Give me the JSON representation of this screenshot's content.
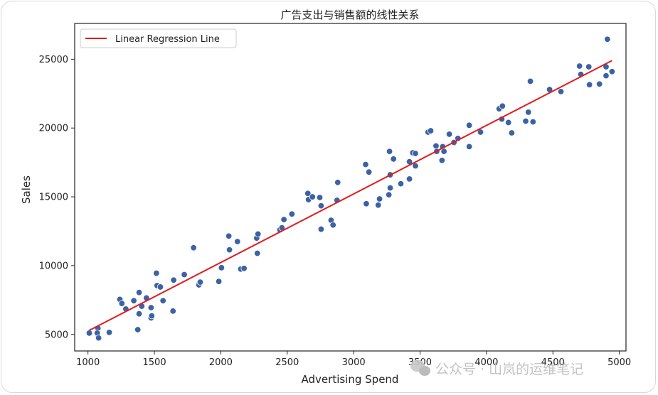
{
  "chart_data": {
    "type": "scatter",
    "title": "广告支出与销售额的线性关系",
    "xlabel": "Advertising Spend",
    "ylabel": "Sales",
    "xlim": [
      900,
      5050
    ],
    "ylim": [
      3800,
      27600
    ],
    "xticks": [
      1000,
      1500,
      2000,
      2500,
      3000,
      3500,
      4000,
      4500,
      5000
    ],
    "yticks": [
      5000,
      10000,
      15000,
      20000,
      25000
    ],
    "grid": false,
    "legend_position": "top-left",
    "colors": {
      "points": "#3b62a4",
      "line": "#e41a1c"
    },
    "series": [
      {
        "type": "scatter",
        "points": [
          [
            1010,
            5100
          ],
          [
            1075,
            5450
          ],
          [
            1070,
            5100
          ],
          [
            1080,
            4750
          ],
          [
            1160,
            5150
          ],
          [
            1240,
            7550
          ],
          [
            1255,
            7250
          ],
          [
            1285,
            6850
          ],
          [
            1345,
            7450
          ],
          [
            1375,
            5350
          ],
          [
            1385,
            8050
          ],
          [
            1385,
            6500
          ],
          [
            1405,
            7050
          ],
          [
            1440,
            7650
          ],
          [
            1475,
            6200
          ],
          [
            1475,
            6950
          ],
          [
            1480,
            6350
          ],
          [
            1515,
            9450
          ],
          [
            1520,
            8550
          ],
          [
            1545,
            8450
          ],
          [
            1565,
            7450
          ],
          [
            1640,
            6700
          ],
          [
            1645,
            8950
          ],
          [
            1725,
            9350
          ],
          [
            1795,
            11300
          ],
          [
            1835,
            8600
          ],
          [
            1845,
            8800
          ],
          [
            1985,
            8850
          ],
          [
            2005,
            9850
          ],
          [
            2060,
            12150
          ],
          [
            2065,
            11150
          ],
          [
            2125,
            11750
          ],
          [
            2150,
            9750
          ],
          [
            2175,
            9800
          ],
          [
            2270,
            12000
          ],
          [
            2280,
            12300
          ],
          [
            2275,
            10900
          ],
          [
            2445,
            12600
          ],
          [
            2460,
            12750
          ],
          [
            2475,
            13350
          ],
          [
            2535,
            13750
          ],
          [
            2655,
            15250
          ],
          [
            2660,
            14800
          ],
          [
            2690,
            15000
          ],
          [
            2745,
            14950
          ],
          [
            2755,
            14350
          ],
          [
            2755,
            12650
          ],
          [
            2830,
            13300
          ],
          [
            2845,
            12950
          ],
          [
            2875,
            14750
          ],
          [
            2880,
            16050
          ],
          [
            3090,
            17350
          ],
          [
            3095,
            14500
          ],
          [
            3115,
            16800
          ],
          [
            3185,
            14400
          ],
          [
            3195,
            14850
          ],
          [
            3265,
            15150
          ],
          [
            3270,
            18300
          ],
          [
            3275,
            16600
          ],
          [
            3275,
            15650
          ],
          [
            3300,
            17750
          ],
          [
            3355,
            15950
          ],
          [
            3420,
            16300
          ],
          [
            3420,
            17550
          ],
          [
            3445,
            18200
          ],
          [
            3465,
            18150
          ],
          [
            3465,
            17250
          ],
          [
            3560,
            19700
          ],
          [
            3580,
            19800
          ],
          [
            3620,
            18700
          ],
          [
            3625,
            18300
          ],
          [
            3670,
            18650
          ],
          [
            3680,
            18300
          ],
          [
            3665,
            17650
          ],
          [
            3720,
            19550
          ],
          [
            3755,
            18950
          ],
          [
            3785,
            19250
          ],
          [
            3870,
            18650
          ],
          [
            3870,
            20200
          ],
          [
            3955,
            19700
          ],
          [
            4095,
            21400
          ],
          [
            4115,
            20650
          ],
          [
            4120,
            21600
          ],
          [
            4165,
            20400
          ],
          [
            4190,
            19650
          ],
          [
            4295,
            20500
          ],
          [
            4315,
            21150
          ],
          [
            4330,
            23400
          ],
          [
            4350,
            20450
          ],
          [
            4475,
            22800
          ],
          [
            4560,
            22650
          ],
          [
            4700,
            24500
          ],
          [
            4710,
            23900
          ],
          [
            4770,
            24450
          ],
          [
            4775,
            23150
          ],
          [
            4850,
            23200
          ],
          [
            4900,
            23800
          ],
          [
            4900,
            24450
          ],
          [
            4910,
            26450
          ],
          [
            4945,
            24100
          ]
        ]
      },
      {
        "type": "line",
        "name": "Linear Regression Line",
        "x": [
          1010,
          4945
        ],
        "y": [
          5300,
          24900
        ]
      }
    ]
  },
  "watermark": {
    "text": "公众号 · 山岚的运维笔记",
    "icon": "wechat-icon"
  }
}
